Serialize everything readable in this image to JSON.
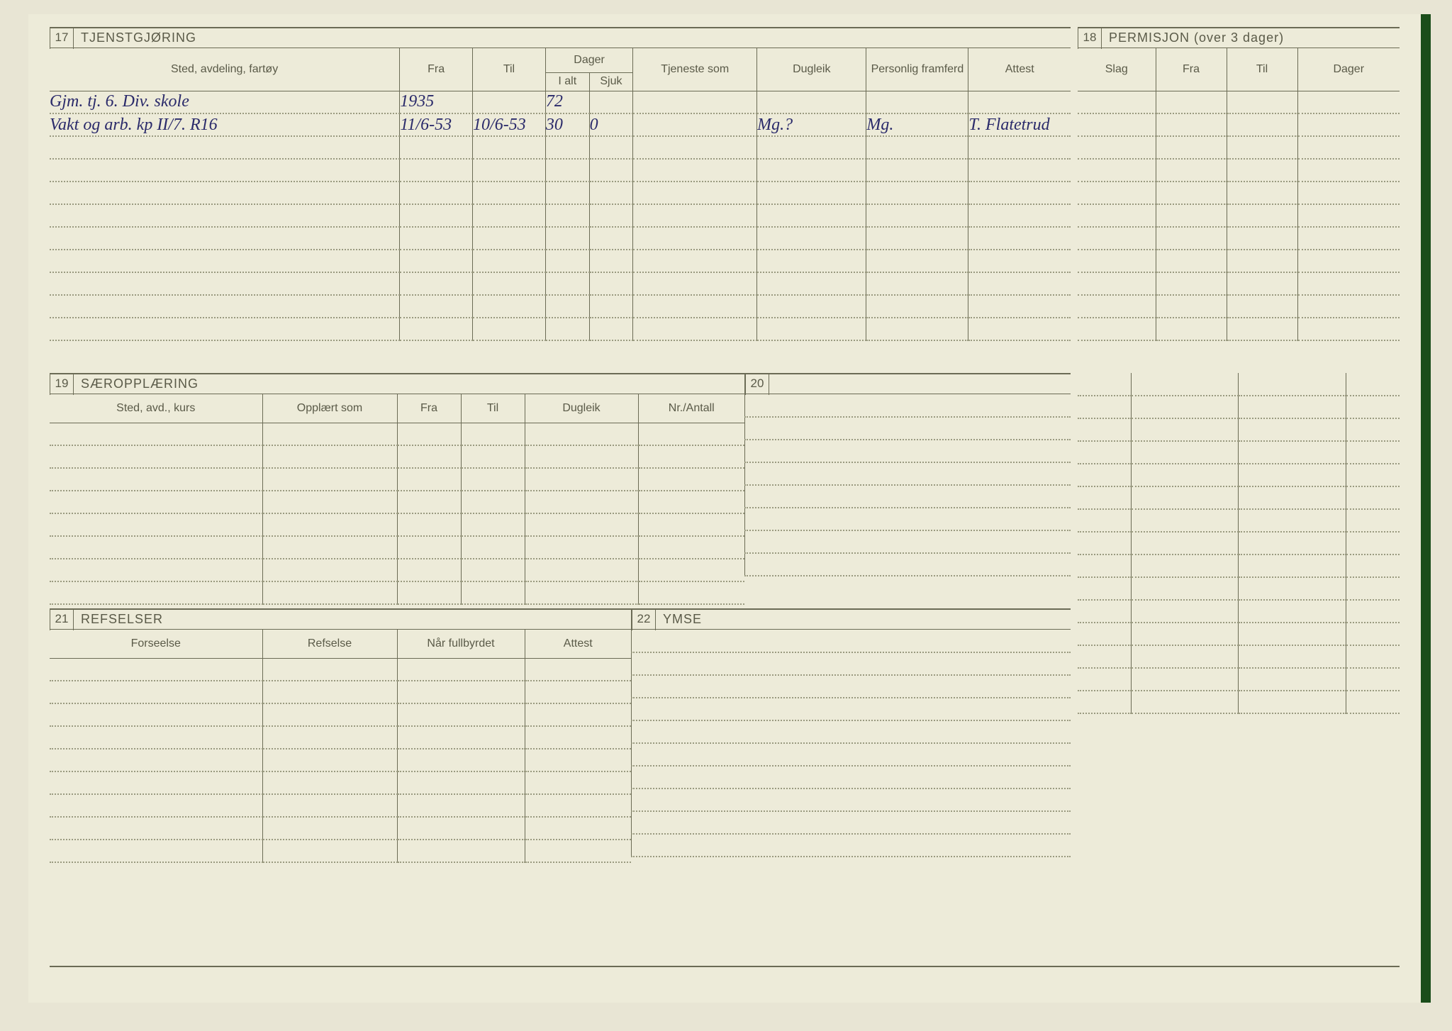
{
  "colors": {
    "page_bg": "#edebd9",
    "outer_bg": "#e8e5d4",
    "line": "#6b6b55",
    "dotted": "#9a9a80",
    "text": "#5a5a48",
    "handwriting": "#2a2a6a",
    "spine": "#1a4d1a"
  },
  "sec17": {
    "num": "17",
    "title": "TJENSTGJØRING",
    "cols": {
      "sted": "Sted, avdeling, fartøy",
      "fra": "Fra",
      "til": "Til",
      "dager": "Dager",
      "ialt": "I alt",
      "sjuk": "Sjuk",
      "tjeneste": "Tjeneste som",
      "dugleik": "Dugleik",
      "framferd": "Personlig framferd",
      "attest": "Attest"
    },
    "rows": [
      {
        "sted": "Gjm. tj. 6. Div. skole",
        "fra": "1935",
        "til": "",
        "ialt": "72",
        "sjuk": "",
        "tjeneste": "",
        "dugleik": "",
        "framferd": "",
        "attest": ""
      },
      {
        "sted": "Vakt og arb. kp II/7. R16",
        "fra": "11/6-53",
        "til": "10/6-53",
        "ialt": "30",
        "sjuk": "0",
        "tjeneste": "",
        "dugleik": "Mg.?",
        "framferd": "Mg.",
        "attest": "T. Flatetrud"
      }
    ],
    "blank_rows": 9
  },
  "sec18": {
    "num": "18",
    "title": "PERMISJON (over 3 dager)",
    "cols": {
      "slag": "Slag",
      "fra": "Fra",
      "til": "Til",
      "dager": "Dager"
    },
    "blank_rows": 11
  },
  "sec19": {
    "num": "19",
    "title": "SÆROPPLÆRING",
    "cols": {
      "sted": "Sted, avd., kurs",
      "opplart": "Opplært som",
      "fra": "Fra",
      "til": "Til",
      "dugleik": "Dugleik",
      "nr": "Nr./Antall"
    },
    "blank_rows": 8
  },
  "sec20": {
    "num": "20",
    "blank_rows": 8
  },
  "sec21": {
    "num": "21",
    "title": "REFSELSER",
    "cols": {
      "forseelse": "Forseelse",
      "refselse": "Refselse",
      "nar": "Når fullbyrdet",
      "attest": "Attest"
    },
    "blank_rows": 9
  },
  "sec22": {
    "num": "22",
    "title": "YMSE",
    "blank_rows": 10
  },
  "right_extra_rows": 15
}
